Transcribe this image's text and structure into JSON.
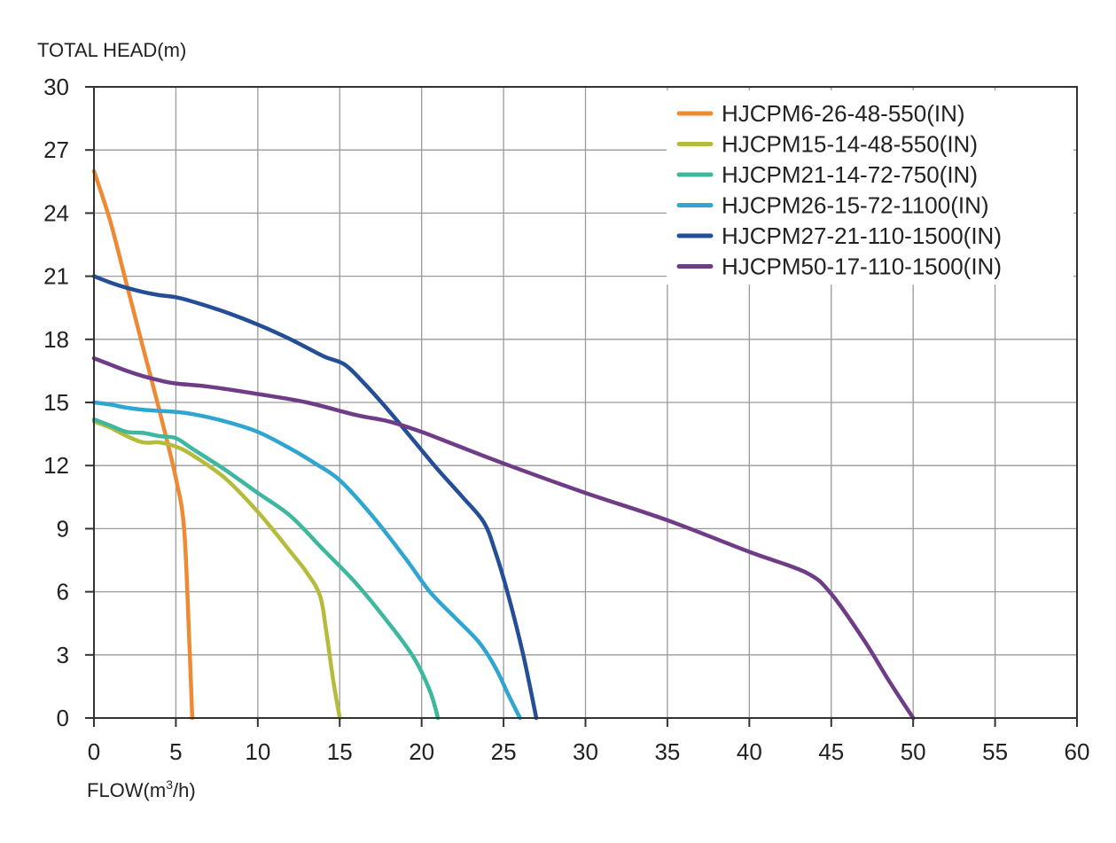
{
  "chart_data": {
    "type": "line",
    "title": "",
    "ylabel": "TOTAL HEAD(m)",
    "xlabel_main": "FLOW(m",
    "xlabel_sup": "3",
    "xlabel_tail": "/h)",
    "xlim": [
      0,
      60
    ],
    "ylim": [
      0,
      30
    ],
    "x_ticks": [
      0,
      5,
      10,
      15,
      20,
      25,
      30,
      35,
      40,
      45,
      50,
      55,
      60
    ],
    "y_ticks": [
      0,
      3,
      6,
      9,
      12,
      15,
      18,
      21,
      24,
      27,
      30
    ],
    "grid": true,
    "legend_position": "top-right",
    "series": [
      {
        "name": "HJCPM6-26-48-550(IN)",
        "color": "#ee8a34",
        "points": [
          [
            0,
            26
          ],
          [
            1,
            23.6
          ],
          [
            2,
            20.6
          ],
          [
            3,
            17.6
          ],
          [
            4,
            14.6
          ],
          [
            5,
            11.4
          ],
          [
            5.5,
            9
          ],
          [
            5.8,
            4
          ],
          [
            6,
            0
          ]
        ]
      },
      {
        "name": "HJCPM15-14-48-550(IN)",
        "color": "#b5bb3a",
        "points": [
          [
            0,
            14.1
          ],
          [
            1,
            13.8
          ],
          [
            2,
            13.4
          ],
          [
            3,
            13.1
          ],
          [
            4,
            13.1
          ],
          [
            5,
            12.9
          ],
          [
            6,
            12.5
          ],
          [
            8,
            11.4
          ],
          [
            10,
            9.8
          ],
          [
            12,
            7.9
          ],
          [
            13,
            6.9
          ],
          [
            13.8,
            5.8
          ],
          [
            14.2,
            4
          ],
          [
            14.6,
            1.8
          ],
          [
            15,
            0
          ]
        ]
      },
      {
        "name": "HJCPM21-14-72-750(IN)",
        "color": "#3db89e",
        "points": [
          [
            0,
            14.2
          ],
          [
            1,
            13.9
          ],
          [
            2,
            13.6
          ],
          [
            3,
            13.55
          ],
          [
            4,
            13.4
          ],
          [
            5,
            13.3
          ],
          [
            6,
            12.8
          ],
          [
            8,
            11.8
          ],
          [
            10,
            10.7
          ],
          [
            12,
            9.6
          ],
          [
            14,
            8
          ],
          [
            16,
            6.4
          ],
          [
            18,
            4.5
          ],
          [
            19.5,
            2.9
          ],
          [
            20.5,
            1.3
          ],
          [
            21,
            0
          ]
        ]
      },
      {
        "name": "HJCPM26-15-72-1100(IN)",
        "color": "#2fa6d1",
        "points": [
          [
            0,
            15
          ],
          [
            1,
            14.9
          ],
          [
            2,
            14.75
          ],
          [
            3,
            14.65
          ],
          [
            4,
            14.6
          ],
          [
            5,
            14.55
          ],
          [
            6,
            14.45
          ],
          [
            8,
            14.1
          ],
          [
            10,
            13.6
          ],
          [
            12,
            12.8
          ],
          [
            13.5,
            12.1
          ],
          [
            15,
            11.3
          ],
          [
            17,
            9.6
          ],
          [
            19,
            7.6
          ],
          [
            20.5,
            6
          ],
          [
            22,
            4.8
          ],
          [
            23.5,
            3.6
          ],
          [
            24.5,
            2.4
          ],
          [
            25.3,
            1.1
          ],
          [
            26,
            0
          ]
        ]
      },
      {
        "name": "HJCPM27-21-110-1500(IN)",
        "color": "#244f97",
        "points": [
          [
            0,
            21
          ],
          [
            1,
            20.7
          ],
          [
            2,
            20.45
          ],
          [
            3,
            20.25
          ],
          [
            4,
            20.1
          ],
          [
            5,
            20
          ],
          [
            6,
            19.8
          ],
          [
            8,
            19.3
          ],
          [
            10,
            18.7
          ],
          [
            12,
            18
          ],
          [
            14,
            17.2
          ],
          [
            15.3,
            16.8
          ],
          [
            16.5,
            15.9
          ],
          [
            18,
            14.6
          ],
          [
            19.5,
            13.2
          ],
          [
            21,
            11.8
          ],
          [
            22.5,
            10.5
          ],
          [
            23.8,
            9.3
          ],
          [
            24.5,
            7.9
          ],
          [
            25.3,
            5.8
          ],
          [
            26.2,
            3
          ],
          [
            27,
            0
          ]
        ]
      },
      {
        "name": "HJCPM50-17-110-1500(IN)",
        "color": "#6f3d87",
        "points": [
          [
            0,
            17.1
          ],
          [
            1,
            16.8
          ],
          [
            2,
            16.5
          ],
          [
            3,
            16.25
          ],
          [
            4,
            16.05
          ],
          [
            5,
            15.9
          ],
          [
            7,
            15.75
          ],
          [
            10,
            15.4
          ],
          [
            13,
            15
          ],
          [
            16,
            14.4
          ],
          [
            18,
            14.1
          ],
          [
            20,
            13.6
          ],
          [
            22,
            13
          ],
          [
            25,
            12.1
          ],
          [
            30,
            10.7
          ],
          [
            35,
            9.4
          ],
          [
            40,
            7.9
          ],
          [
            43.5,
            6.9
          ],
          [
            45,
            5.9
          ],
          [
            47,
            3.7
          ],
          [
            48.5,
            1.8
          ],
          [
            50,
            0
          ]
        ]
      }
    ]
  }
}
